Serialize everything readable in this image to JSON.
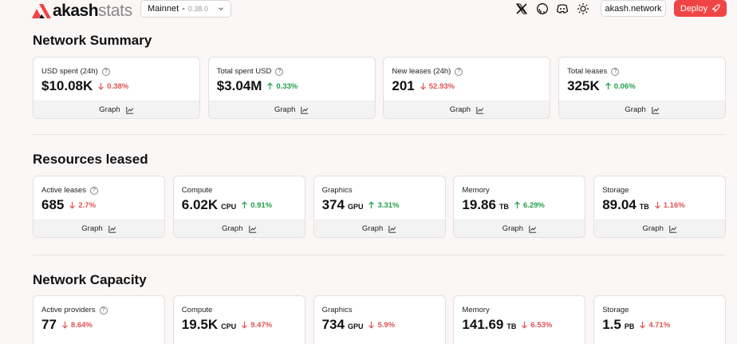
{
  "header": {
    "logo_main": "akash",
    "logo_suffix": "stats",
    "network": "Mainnet",
    "network_sep": "-",
    "version": "0.38.0",
    "site_link": "akash.network",
    "deploy_label": "Deploy"
  },
  "summary": {
    "title": "Network Summary",
    "cards": [
      {
        "label": "USD spent (24h)",
        "value": "$10.08K",
        "change": "0.38%",
        "dir": "down",
        "graph": "Graph"
      },
      {
        "label": "Total spent USD",
        "value": "$3.04M",
        "change": "0.33%",
        "dir": "up",
        "graph": "Graph"
      },
      {
        "label": "New leases (24h)",
        "value": "201",
        "change": "52.93%",
        "dir": "down",
        "graph": "Graph"
      },
      {
        "label": "Total leases",
        "value": "325K",
        "change": "0.06%",
        "dir": "up",
        "graph": "Graph"
      }
    ]
  },
  "leased": {
    "title": "Resources leased",
    "cards": [
      {
        "label": "Active leases",
        "value": "685",
        "unit": "",
        "change": "2.7%",
        "dir": "down",
        "graph": "Graph"
      },
      {
        "label": "Compute",
        "value": "6.02K",
        "unit": "CPU",
        "change": "0.91%",
        "dir": "up",
        "graph": "Graph"
      },
      {
        "label": "Graphics",
        "value": "374",
        "unit": "GPU",
        "change": "3.31%",
        "dir": "up",
        "graph": "Graph"
      },
      {
        "label": "Memory",
        "value": "19.86",
        "unit": "TB",
        "change": "6.29%",
        "dir": "up",
        "graph": "Graph"
      },
      {
        "label": "Storage",
        "value": "89.04",
        "unit": "TB",
        "change": "1.16%",
        "dir": "down",
        "graph": "Graph"
      }
    ]
  },
  "capacity": {
    "title": "Network Capacity",
    "cards": [
      {
        "label": "Active providers",
        "value": "77",
        "unit": "",
        "change": "8.64%",
        "dir": "down"
      },
      {
        "label": "Compute",
        "value": "19.5K",
        "unit": "CPU",
        "change": "9.47%",
        "dir": "down"
      },
      {
        "label": "Graphics",
        "value": "734",
        "unit": "GPU",
        "change": "5.9%",
        "dir": "down"
      },
      {
        "label": "Memory",
        "value": "141.69",
        "unit": "TB",
        "change": "6.53%",
        "dir": "down"
      },
      {
        "label": "Storage",
        "value": "1.5",
        "unit": "PB",
        "change": "4.71%",
        "dir": "down"
      }
    ]
  },
  "colors": {
    "accent": "#ef4444",
    "up": "#22a04a",
    "down": "#e05252",
    "background": "#faf7f6"
  }
}
